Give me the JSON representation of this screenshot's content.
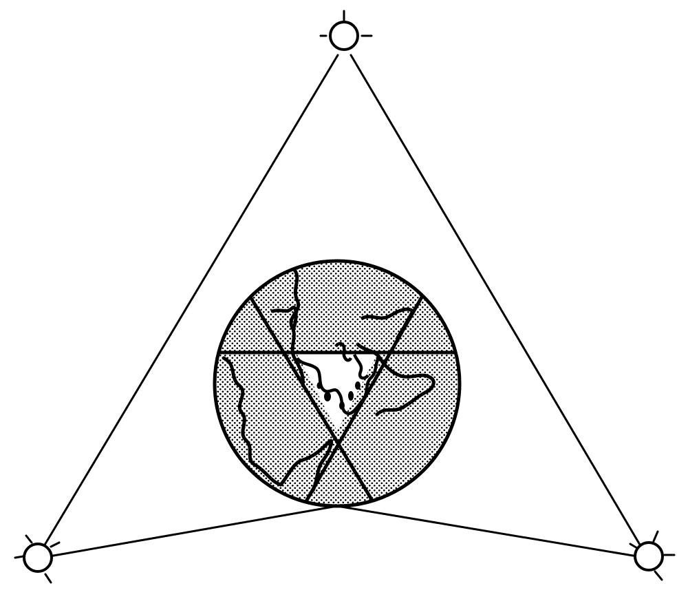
{
  "diagram": {
    "kind": "satellite-coverage",
    "satellite_count": 3,
    "colors": {
      "ink": "#000000",
      "background": "#ffffff",
      "satellite_fill": "#ffffff",
      "earth_stipple": "#000000"
    },
    "icons": [
      "satellite-icon",
      "earth-globe-icon"
    ]
  }
}
